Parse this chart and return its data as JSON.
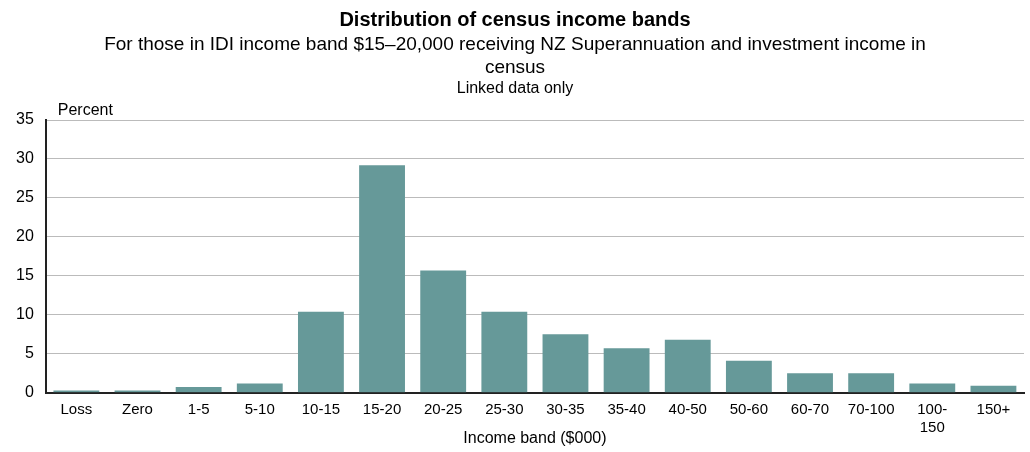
{
  "chart_data": {
    "type": "bar",
    "title": "Distribution of census income bands",
    "subtitle": "For those in IDI income band $15–20,000 receiving NZ Superannuation and investment income in census\nLinked data only",
    "xlabel": "Income band ($000)",
    "ylabel": "Percent",
    "categories": [
      "Loss",
      "Zero",
      "1-5",
      "5-10",
      "10-15",
      "15-20",
      "20-25",
      "25-30",
      "30-35",
      "35-40",
      "40-50",
      "50-60",
      "60-70",
      "70-100",
      "100-150",
      "150+"
    ],
    "values": [
      0.3,
      0.3,
      0.75,
      1.2,
      10.4,
      29.2,
      15.7,
      10.4,
      7.5,
      5.7,
      6.8,
      4.1,
      2.5,
      2.5,
      1.2,
      0.9
    ],
    "color": "#669999",
    "ylim": [
      0,
      35
    ],
    "yticks": [
      0,
      5,
      10,
      15,
      20,
      25,
      30,
      35
    ],
    "grid": "y",
    "legend": false
  }
}
